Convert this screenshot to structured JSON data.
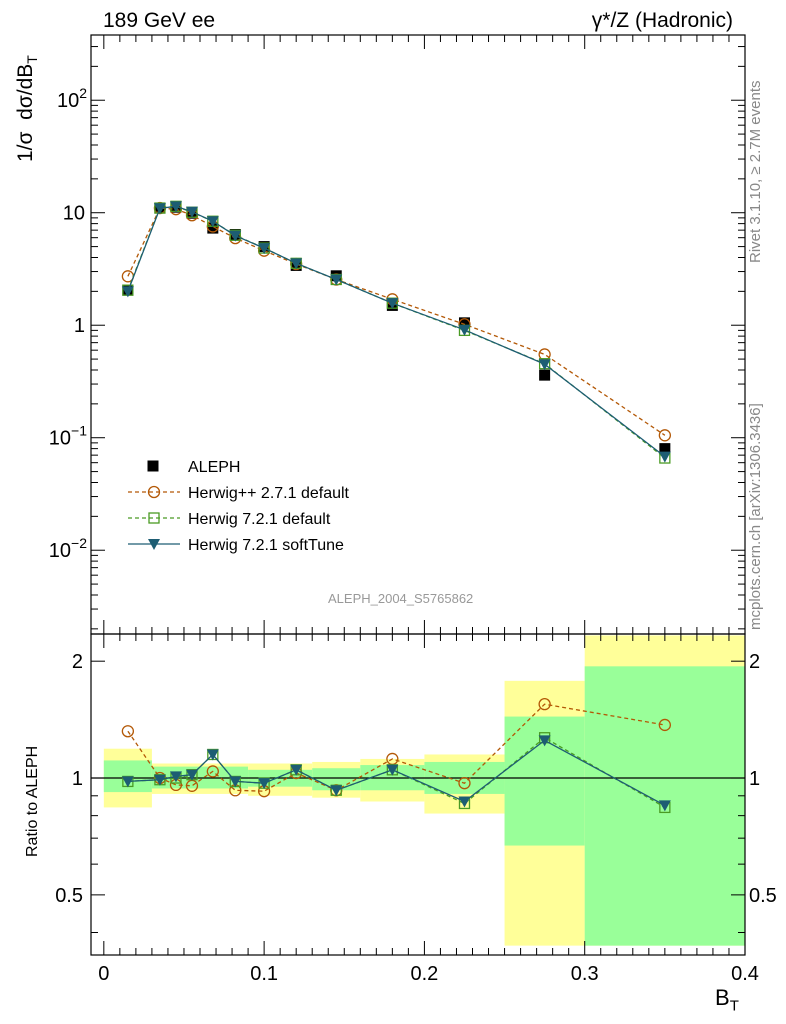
{
  "header": {
    "left": "189 GeV ee",
    "right": "γ*/Z (Hadronic)"
  },
  "side_text": {
    "rivet": "Rivet 3.1.10, ≥ 2.7M events",
    "mcplots": "mcplots.cern.ch [arXiv:1306.3436]"
  },
  "watermark": "ALEPH_2004_S5765862",
  "chart_data": [
    {
      "type": "line",
      "panel": "main",
      "ylabel": "1/σ  dσ/dB_T",
      "yscale": "log",
      "ylim": [
        0.0018,
        380
      ],
      "xlim": [
        -0.008,
        0.4
      ],
      "y_ticks": [
        "10^-1",
        "1",
        "10",
        "10^2",
        "10^-2"
      ],
      "series": [
        {
          "name": "ALEPH",
          "style": "data-points",
          "color": "#000000",
          "marker": "filled-square",
          "x": [
            0.015,
            0.035,
            0.045,
            0.055,
            0.068,
            0.082,
            0.1,
            0.12,
            0.145,
            0.18,
            0.225,
            0.275,
            0.35
          ],
          "y": [
            2.05,
            11.0,
            11.2,
            9.9,
            7.3,
            6.4,
            5.0,
            3.4,
            2.75,
            1.5,
            1.05,
            0.36,
            0.08
          ],
          "band_x": [
            [
              0.0,
              0.03
            ],
            [
              0.03,
              0.06
            ],
            [
              0.06,
              0.09
            ],
            [
              0.09,
              0.13
            ],
            [
              0.13,
              0.16
            ],
            [
              0.16,
              0.2
            ],
            [
              0.2,
              0.25
            ],
            [
              0.25,
              0.3
            ],
            [
              0.3,
              0.4
            ]
          ],
          "band_stat": [
            [
              0.92,
              1.11
            ],
            [
              0.94,
              1.07
            ],
            [
              0.94,
              1.07
            ],
            [
              0.95,
              1.05
            ],
            [
              0.93,
              1.06
            ],
            [
              0.93,
              1.08
            ],
            [
              0.91,
              1.1
            ],
            [
              0.67,
              1.44
            ],
            [
              0.37,
              1.94
            ]
          ],
          "band_total": [
            [
              0.84,
              1.19
            ],
            [
              0.91,
              1.09
            ],
            [
              0.91,
              1.09
            ],
            [
              0.9,
              1.09
            ],
            [
              0.89,
              1.1
            ],
            [
              0.87,
              1.12
            ],
            [
              0.81,
              1.15
            ],
            [
              0.37,
              1.78
            ],
            [
              0.37,
              2.33
            ]
          ]
        },
        {
          "name": "Herwig++ 2.7.1 default",
          "style": "dashed",
          "color": "#b35806",
          "marker": "open-circle",
          "x": [
            0.015,
            0.035,
            0.045,
            0.055,
            0.068,
            0.082,
            0.1,
            0.12,
            0.145,
            0.18,
            0.225,
            0.275,
            0.35
          ],
          "y": [
            2.72,
            11.0,
            10.75,
            9.5,
            7.55,
            5.95,
            4.6,
            3.5,
            2.55,
            1.7,
            1.02,
            0.55,
            0.105
          ]
        },
        {
          "name": "Herwig 7.2.1 default",
          "style": "dashed",
          "color": "#4a9b24",
          "marker": "open-square",
          "x": [
            0.015,
            0.035,
            0.045,
            0.055,
            0.068,
            0.082,
            0.1,
            0.12,
            0.145,
            0.18,
            0.225,
            0.275,
            0.35
          ],
          "y": [
            2.05,
            11.0,
            11.4,
            10.1,
            8.4,
            6.3,
            4.85,
            3.55,
            2.55,
            1.57,
            0.9,
            0.455,
            0.066
          ]
        },
        {
          "name": "Herwig 7.2.1 softTune",
          "style": "solid",
          "color": "#1d5d73",
          "marker": "filled-triangle-down",
          "x": [
            0.015,
            0.035,
            0.045,
            0.055,
            0.068,
            0.082,
            0.1,
            0.12,
            0.145,
            0.18,
            0.225,
            0.275,
            0.35
          ],
          "y": [
            2.0,
            10.95,
            11.4,
            10.2,
            8.4,
            6.25,
            4.85,
            3.55,
            2.55,
            1.57,
            0.91,
            0.45,
            0.068
          ]
        }
      ]
    },
    {
      "type": "line",
      "panel": "ratio",
      "ylabel": "Ratio to ALEPH",
      "xlabel": "B_T",
      "yscale": "log",
      "ylim": [
        0.35,
        2.35
      ],
      "xlim": [
        -0.008,
        0.4
      ],
      "y_tick_labels": [
        "0.5",
        "1",
        "2"
      ],
      "x_tick_labels": [
        "0",
        "0.1",
        "0.2",
        "0.3",
        "0.4"
      ],
      "x_ticks": [
        0,
        0.1,
        0.2,
        0.3,
        0.4
      ],
      "series": [
        {
          "name": "Herwig++ 2.7.1 default",
          "x": [
            0.015,
            0.035,
            0.045,
            0.055,
            0.068,
            0.082,
            0.1,
            0.12,
            0.145,
            0.18,
            0.225,
            0.275,
            0.35
          ],
          "y": [
            1.32,
            1.0,
            0.96,
            0.955,
            1.04,
            0.93,
            0.925,
            1.03,
            0.93,
            1.12,
            0.97,
            1.55,
            1.37
          ]
        },
        {
          "name": "Herwig 7.2.1 default",
          "x": [
            0.015,
            0.035,
            0.045,
            0.055,
            0.068,
            0.082,
            0.1,
            0.12,
            0.145,
            0.18,
            0.225,
            0.275,
            0.35
          ],
          "y": [
            0.98,
            0.99,
            1.0,
            1.02,
            1.15,
            0.98,
            0.97,
            1.05,
            0.93,
            1.05,
            0.86,
            1.27,
            0.84
          ]
        },
        {
          "name": "Herwig 7.2.1 softTune",
          "x": [
            0.015,
            0.035,
            0.045,
            0.055,
            0.068,
            0.082,
            0.1,
            0.12,
            0.145,
            0.18,
            0.225,
            0.275,
            0.35
          ],
          "y": [
            0.98,
            0.99,
            1.01,
            1.02,
            1.15,
            0.98,
            0.97,
            1.05,
            0.93,
            1.05,
            0.87,
            1.25,
            0.85
          ]
        }
      ]
    }
  ]
}
